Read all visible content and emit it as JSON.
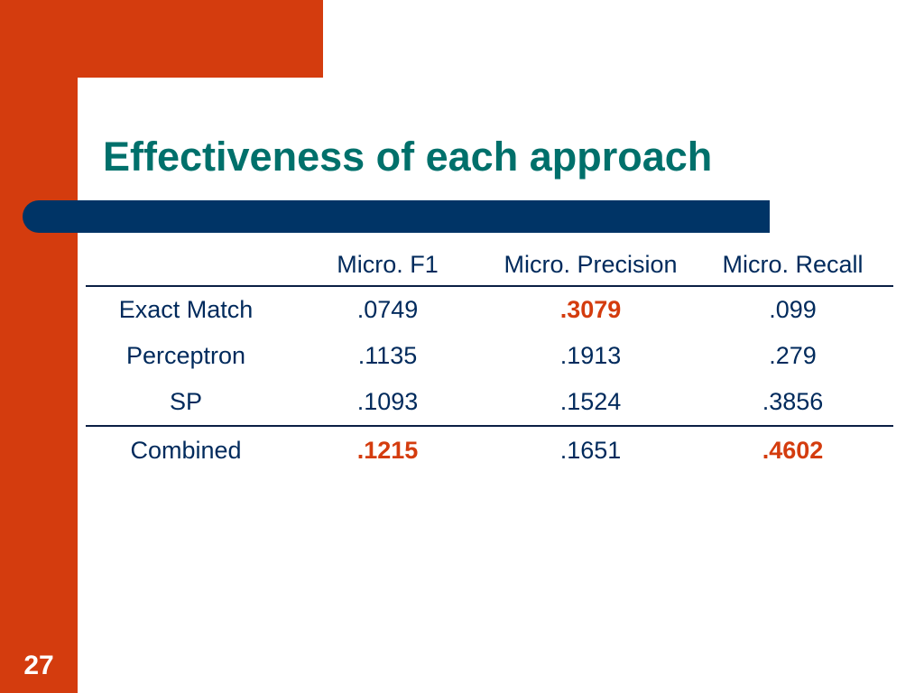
{
  "slide": {
    "title": "Effectiveness of each approach",
    "page_number": "27",
    "colors": {
      "accent": "#d43c0e",
      "title": "#00706b",
      "bar": "#003466",
      "text": "#002a5c",
      "highlight": "#d43c0e"
    }
  },
  "table": {
    "headers": [
      "",
      "Micro. F1",
      "Micro. Precision",
      "Micro. Recall"
    ],
    "rows": [
      {
        "label": "Exact Match",
        "f1": ".0749",
        "precision": ".3079",
        "recall": ".099"
      },
      {
        "label": "Perceptron",
        "f1": ".1135",
        "precision": ".1913",
        "recall": ".279"
      },
      {
        "label": "SP",
        "f1": ".1093",
        "precision": ".1524",
        "recall": ".3856"
      },
      {
        "label": "Combined",
        "f1": ".1215",
        "precision": ".1651",
        "recall": ".4602"
      }
    ],
    "highlighted_cells": [
      "Exact Match precision",
      "Combined f1",
      "Combined recall"
    ]
  }
}
